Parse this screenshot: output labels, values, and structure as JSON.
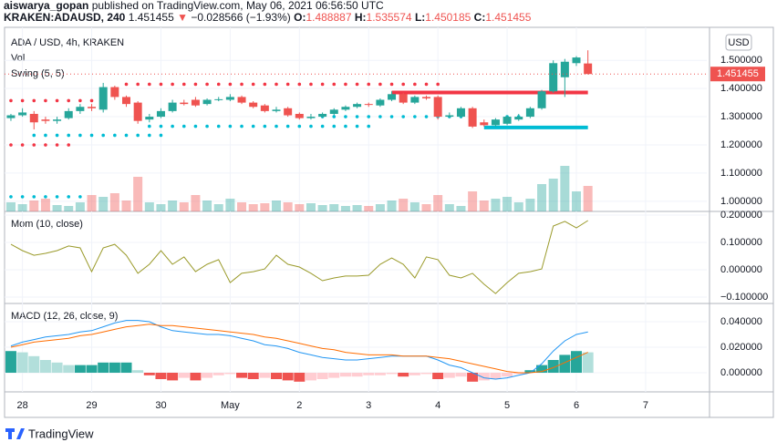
{
  "header": {
    "author": "aiswarya_gopan",
    "published": "published on TradingView.com, May 06, 2021 06:56:50 UTC",
    "symbol": "KRAKEN:ADAUSD, 240",
    "last": "1.451455",
    "arrow": "▼",
    "change": "−0.028566 (−1.93%)",
    "o_label": "O:",
    "o": "1.488887",
    "h_label": "H:",
    "h": "1.535574",
    "l_label": "L:",
    "l": "1.450185",
    "c_label": "C:",
    "c": "1.451455"
  },
  "footer": {
    "brand": "TradingView"
  },
  "chart_data": [
    {
      "type": "candlestick",
      "title": "ADA / USD, 4h, KRAKEN",
      "unit": "USD",
      "volume_label": "Vol",
      "swing_label": "Swing (5, 5)",
      "up_color": "#26a69a",
      "down_color": "#ef5350",
      "xlim": [
        -0.55,
        60.3
      ],
      "ylim": [
        0.964,
        1.617
      ],
      "yticks": [
        {
          "value": 1.0,
          "label": "1.000000"
        },
        {
          "value": 1.1,
          "label": "1.100000"
        },
        {
          "value": 1.2,
          "label": "1.200000"
        },
        {
          "value": 1.3,
          "label": "1.300000"
        },
        {
          "value": 1.4,
          "label": "1.400000"
        },
        {
          "value": 1.5,
          "label": "1.500000"
        }
      ],
      "open": [
        1.295,
        1.305,
        1.31,
        1.29,
        1.285,
        1.295,
        1.32,
        1.335,
        1.325,
        1.405,
        1.37,
        1.35,
        1.29,
        1.3,
        1.32,
        1.35,
        1.36,
        1.345,
        1.36,
        1.36,
        1.37,
        1.35,
        1.34,
        1.32,
        1.33,
        1.31,
        1.295,
        1.3,
        1.31,
        1.325,
        1.335,
        1.345,
        1.34,
        1.36,
        1.38,
        1.35,
        1.37,
        1.37,
        1.3,
        1.3,
        1.33,
        1.28,
        1.27,
        1.275,
        1.29,
        1.3,
        1.33,
        1.39,
        1.44,
        1.49,
        1.488887
      ],
      "high": [
        1.31,
        1.33,
        1.32,
        1.3,
        1.3,
        1.33,
        1.345,
        1.345,
        1.42,
        1.41,
        1.375,
        1.355,
        1.31,
        1.33,
        1.36,
        1.36,
        1.37,
        1.365,
        1.37,
        1.38,
        1.375,
        1.355,
        1.345,
        1.335,
        1.335,
        1.315,
        1.31,
        1.315,
        1.33,
        1.34,
        1.35,
        1.35,
        1.365,
        1.39,
        1.385,
        1.375,
        1.375,
        1.375,
        1.315,
        1.335,
        1.335,
        1.29,
        1.295,
        1.305,
        1.31,
        1.335,
        1.395,
        1.5,
        1.505,
        1.515,
        1.535574
      ],
      "low": [
        1.285,
        1.3,
        1.255,
        1.275,
        1.275,
        1.29,
        1.31,
        1.32,
        1.315,
        1.36,
        1.335,
        1.275,
        1.28,
        1.295,
        1.315,
        1.34,
        1.335,
        1.34,
        1.355,
        1.355,
        1.345,
        1.33,
        1.315,
        1.315,
        1.3,
        1.29,
        1.29,
        1.295,
        1.305,
        1.32,
        1.33,
        1.335,
        1.335,
        1.355,
        1.345,
        1.345,
        1.36,
        1.29,
        1.295,
        1.295,
        1.26,
        1.265,
        1.265,
        1.27,
        1.285,
        1.295,
        1.325,
        1.385,
        1.37,
        1.48,
        1.450185
      ],
      "close": [
        1.305,
        1.315,
        1.28,
        1.285,
        1.29,
        1.32,
        1.335,
        1.33,
        1.405,
        1.37,
        1.345,
        1.285,
        1.3,
        1.32,
        1.35,
        1.345,
        1.34,
        1.36,
        1.362,
        1.37,
        1.35,
        1.335,
        1.32,
        1.325,
        1.305,
        1.295,
        1.3,
        1.31,
        1.325,
        1.335,
        1.345,
        1.342,
        1.36,
        1.38,
        1.35,
        1.37,
        1.365,
        1.3,
        1.305,
        1.33,
        1.265,
        1.27,
        1.29,
        1.3,
        1.3,
        1.33,
        1.39,
        1.49,
        1.495,
        1.51,
        1.451455
      ],
      "volume": [
        10,
        8,
        12,
        14,
        7,
        6,
        10,
        18,
        16,
        20,
        12,
        38,
        10,
        8,
        12,
        10,
        18,
        12,
        8,
        14,
        10,
        8,
        9,
        12,
        10,
        8,
        9,
        7,
        8,
        6,
        7,
        6,
        8,
        12,
        14,
        10,
        8,
        18,
        8,
        6,
        22,
        12,
        14,
        16,
        10,
        14,
        30,
        36,
        50,
        22,
        28
      ],
      "swing": [
        {
          "color": "#f23645",
          "line": false,
          "x": [
            0,
            1,
            2,
            3,
            4,
            5
          ],
          "values": [
            1.2,
            1.2,
            1.2,
            1.2,
            1.2,
            1.2
          ]
        },
        {
          "color": "#f23645",
          "line": false,
          "x": [
            0,
            1,
            2,
            3,
            4,
            5,
            6,
            7
          ],
          "values": [
            1.357,
            1.357,
            1.357,
            1.357,
            1.357,
            1.357,
            1.357,
            1.357
          ]
        },
        {
          "color": "#f23645",
          "line": false,
          "x": [
            10,
            11,
            12,
            13,
            14,
            15,
            16,
            17,
            18,
            19,
            20,
            21,
            22,
            23,
            24,
            25,
            26,
            27,
            28,
            29,
            30,
            31,
            32,
            33,
            34,
            35,
            36,
            37
          ],
          "values": [
            1.415,
            1.415,
            1.415,
            1.415,
            1.415,
            1.415,
            1.415,
            1.415,
            1.415,
            1.415,
            1.415,
            1.415,
            1.415,
            1.415,
            1.415,
            1.415,
            1.415,
            1.415,
            1.415,
            1.415,
            1.415,
            1.415,
            1.415,
            1.415,
            1.415,
            1.415,
            1.415,
            1.415
          ]
        },
        {
          "color": "#f23645",
          "line": true,
          "x": [
            33,
            50
          ],
          "values": [
            1.386,
            1.386
          ]
        },
        {
          "color": "#00bcd4",
          "line": false,
          "x": [
            0,
            1,
            2,
            3,
            4,
            5,
            6
          ],
          "values": [
            1.016,
            1.016,
            1.016,
            1.016,
            1.016,
            1.016,
            1.016
          ]
        },
        {
          "color": "#00bcd4",
          "line": false,
          "x": [
            2,
            3,
            4,
            5,
            6,
            7,
            8,
            9,
            10,
            11,
            12,
            13
          ],
          "values": [
            1.234,
            1.234,
            1.234,
            1.234,
            1.234,
            1.234,
            1.234,
            1.234,
            1.234,
            1.234,
            1.234,
            1.234
          ]
        },
        {
          "color": "#00bcd4",
          "line": false,
          "x": [
            12,
            13,
            14,
            15,
            16,
            17,
            18,
            19,
            20,
            21,
            22,
            23,
            24,
            25,
            26,
            27,
            28,
            29,
            30,
            31
          ],
          "values": [
            1.266,
            1.266,
            1.266,
            1.266,
            1.266,
            1.266,
            1.266,
            1.266,
            1.266,
            1.266,
            1.266,
            1.266,
            1.266,
            1.266,
            1.266,
            1.266,
            1.266,
            1.266,
            1.266,
            1.266
          ]
        },
        {
          "color": "#00bcd4",
          "line": false,
          "x": [
            27,
            28,
            29,
            30,
            31,
            32,
            33,
            34,
            35,
            36,
            37,
            38,
            39,
            43,
            44
          ],
          "values": [
            1.3,
            1.3,
            1.3,
            1.3,
            1.3,
            1.3,
            1.3,
            1.3,
            1.3,
            1.3,
            1.3,
            1.3,
            1.3,
            1.3,
            1.3
          ]
        },
        {
          "color": "#00bcd4",
          "line": true,
          "x": [
            41,
            50
          ],
          "values": [
            1.262,
            1.262
          ]
        }
      ]
    },
    {
      "type": "line",
      "title": "Mom (10, close)",
      "color": "#9a9a2a",
      "xlim": [
        -0.55,
        60.3
      ],
      "ylim": [
        -0.1233,
        0.2133
      ],
      "yticks": [
        {
          "value": -0.1,
          "label": "−0.100000"
        },
        {
          "value": 0,
          "label": "0.000000"
        },
        {
          "value": 0.1,
          "label": "0.100000"
        },
        {
          "value": 0.2,
          "label": "0.200000"
        }
      ],
      "values": [
        0.093,
        0.07,
        0.053,
        0.06,
        0.07,
        0.087,
        0.08,
        -0.007,
        0.08,
        0.093,
        0.053,
        -0.013,
        0.02,
        0.07,
        0.02,
        0.047,
        -0.007,
        0.02,
        0.037,
        -0.047,
        -0.013,
        -0.007,
        0.003,
        0.053,
        0.02,
        0.01,
        -0.013,
        -0.04,
        -0.03,
        -0.023,
        -0.023,
        -0.02,
        0.02,
        0.043,
        0.02,
        -0.03,
        0.047,
        0.037,
        -0.02,
        -0.03,
        -0.013,
        -0.053,
        -0.087,
        -0.047,
        -0.013,
        -0.007,
        0.003,
        0.16,
        0.177,
        0.153,
        0.18
      ]
    },
    {
      "type": "macd",
      "title": "MACD (12, 26, close, 9)",
      "xlim": [
        -0.55,
        60.3
      ],
      "ylim": [
        -0.015,
        0.0543
      ],
      "yticks": [
        {
          "value": 0,
          "label": "0.000000"
        },
        {
          "value": 0.02,
          "label": "0.020000"
        },
        {
          "value": 0.04,
          "label": "0.040000"
        }
      ],
      "xticks": [
        {
          "value": 1,
          "label": "28"
        },
        {
          "value": 7,
          "label": "29"
        },
        {
          "value": 13,
          "label": "30"
        },
        {
          "value": 19,
          "label": "May"
        },
        {
          "value": 25,
          "label": "2"
        },
        {
          "value": 31,
          "label": "3"
        },
        {
          "value": 37,
          "label": "4"
        },
        {
          "value": 43,
          "label": "5"
        },
        {
          "value": 49,
          "label": "6"
        },
        {
          "value": 55,
          "label": "7"
        }
      ],
      "hist_colors": [
        "#26a69a",
        "#b2dfdb",
        "#ef5350",
        "#ffcdd2"
      ],
      "histogram": [
        0.017,
        0.016,
        0.013,
        0.01,
        0.008,
        0.006,
        0.006,
        0.006,
        0.008,
        0.008,
        0.008,
        0.002,
        -0.002,
        -0.005,
        -0.006,
        -0.004,
        -0.006,
        -0.004,
        -0.002,
        -0.001,
        -0.004,
        -0.005,
        -0.004,
        -0.005,
        -0.006,
        -0.007,
        -0.006,
        -0.005,
        -0.004,
        -0.003,
        -0.003,
        -0.002,
        -0.002,
        -0.001,
        -0.003,
        -0.002,
        -0.001,
        -0.005,
        -0.004,
        -0.003,
        -0.007,
        -0.006,
        -0.005,
        -0.003,
        -0.001,
        0.002,
        0.006,
        0.01,
        0.014,
        0.017,
        0.016
      ],
      "series": [
        {
          "color": "#2196f3",
          "values": [
            0.021,
            0.024,
            0.026,
            0.028,
            0.029,
            0.03,
            0.032,
            0.033,
            0.036,
            0.039,
            0.041,
            0.041,
            0.04,
            0.036,
            0.033,
            0.032,
            0.031,
            0.03,
            0.03,
            0.029,
            0.027,
            0.025,
            0.022,
            0.021,
            0.019,
            0.016,
            0.014,
            0.012,
            0.011,
            0.01,
            0.01,
            0.011,
            0.012,
            0.013,
            0.013,
            0.013,
            0.013,
            0.01,
            0.006,
            0.004,
            0.0,
            -0.004,
            -0.005,
            -0.004,
            -0.002,
            0.0,
            0.007,
            0.017,
            0.025,
            0.03,
            0.032
          ]
        },
        {
          "color": "#ff6d00",
          "values": [
            0.02,
            0.022,
            0.024,
            0.025,
            0.026,
            0.027,
            0.029,
            0.03,
            0.032,
            0.034,
            0.036,
            0.037,
            0.038,
            0.037,
            0.037,
            0.036,
            0.035,
            0.034,
            0.033,
            0.032,
            0.031,
            0.03,
            0.028,
            0.027,
            0.025,
            0.023,
            0.021,
            0.019,
            0.018,
            0.016,
            0.015,
            0.014,
            0.014,
            0.014,
            0.013,
            0.013,
            0.013,
            0.012,
            0.011,
            0.009,
            0.007,
            0.005,
            0.003,
            0.001,
            0.0,
            0.0,
            0.001,
            0.004,
            0.008,
            0.012,
            0.016
          ]
        }
      ]
    }
  ]
}
